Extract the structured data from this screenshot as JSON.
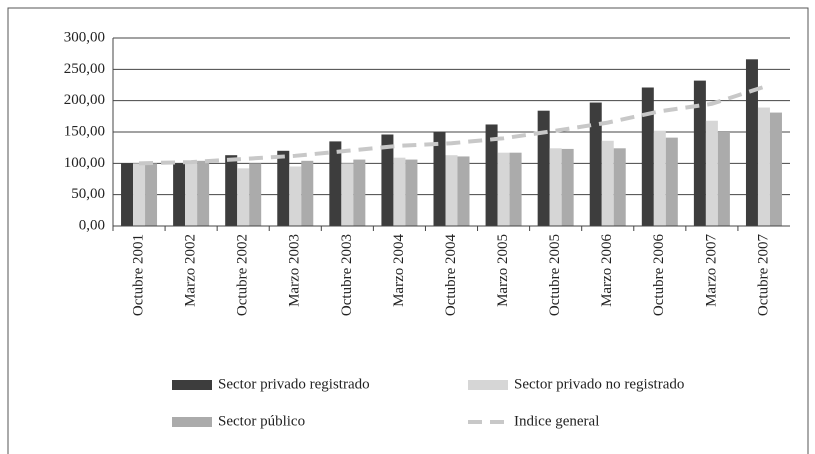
{
  "chart_data": {
    "type": "bar",
    "categories": [
      "Octubre 2001",
      "Marzo 2002",
      "Octubre 2002",
      "Marzo 2003",
      "Octubre 2003",
      "Marzo 2004",
      "Octubre 2004",
      "Marzo 2005",
      "Octubre 2005",
      "Marzo 2006",
      "Octubre 2006",
      "Marzo 2007",
      "Octubre 2007"
    ],
    "series": [
      {
        "name": "Sector privado registrado",
        "color": "#3d3d3d",
        "values": [
          100,
          100,
          113,
          120,
          135,
          146,
          150,
          162,
          184,
          197,
          221,
          232,
          266
        ]
      },
      {
        "name": "Sector privado no registrado",
        "color": "#d6d6d6",
        "values": [
          100,
          103,
          92,
          95,
          100,
          109,
          113,
          117,
          124,
          136,
          152,
          168,
          189
        ]
      },
      {
        "name": "Sector público",
        "color": "#ababab",
        "values": [
          100,
          104,
          100,
          104,
          106,
          106,
          111,
          117,
          123,
          124,
          141,
          150,
          181
        ]
      },
      {
        "name": "Indice general",
        "color": "#c8c8c8",
        "type": "line",
        "dashed": true,
        "values": [
          100,
          102,
          107,
          112,
          120,
          128,
          132,
          140,
          152,
          165,
          183,
          195,
          222
        ]
      }
    ],
    "ylim": [
      0,
      300
    ],
    "yticks": [
      {
        "value": 0,
        "label": "0,00"
      },
      {
        "value": 50,
        "label": "50,00"
      },
      {
        "value": 100,
        "label": "100,00"
      },
      {
        "value": 150,
        "label": "150,00"
      },
      {
        "value": 200,
        "label": "200,00"
      },
      {
        "value": 250,
        "label": "250,00"
      },
      {
        "value": 300,
        "label": "300,00"
      }
    ]
  }
}
